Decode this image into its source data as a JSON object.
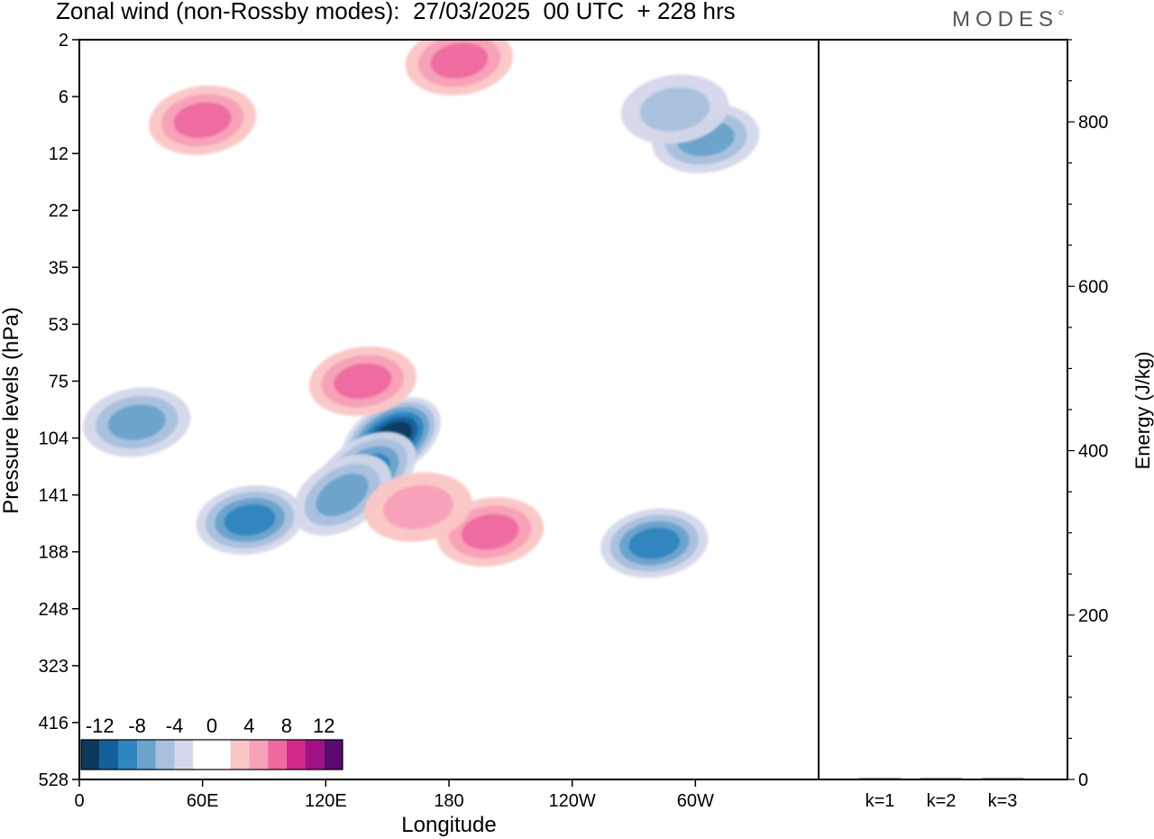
{
  "title": "Zonal wind (non-Rossby modes):  27/03/2025  00 UTC  + 228 hrs",
  "logo": "MODES",
  "logo_mark": "©",
  "chart_data": [
    {
      "type": "heatmap",
      "xlabel": "Longitude",
      "ylabel": "Pressure levels (hPa)",
      "x_ticks": [
        "0",
        "60E",
        "120E",
        "180",
        "120W",
        "60W"
      ],
      "x_range_deg": [
        0,
        360
      ],
      "y_ticks": [
        "2",
        "6",
        "12",
        "22",
        "35",
        "53",
        "75",
        "104",
        "141",
        "188",
        "248",
        "323",
        "416",
        "528"
      ],
      "colorbar": {
        "labels": [
          "-12",
          "-8",
          "-4",
          "0",
          "4",
          "8",
          "12"
        ],
        "colors": [
          "#0c3a5e",
          "#12609a",
          "#2f85bf",
          "#6aa3cc",
          "#a8c0de",
          "#d4d8ea",
          "#ffffff",
          "#ffffff",
          "#fbc6c6",
          "#f7a1b8",
          "#ee6a9e",
          "#d12a8a",
          "#a11284",
          "#5a0a70"
        ]
      },
      "blobs": [
        {
          "lon": 152,
          "plev": 104,
          "value": -12,
          "note": "strongest negative jet core tilted NE over 120E-165E"
        },
        {
          "lon": 140,
          "plev": 125,
          "value": -8
        },
        {
          "lon": 128,
          "plev": 141,
          "value": -6
        },
        {
          "lon": 83,
          "plev": 160,
          "value": -8
        },
        {
          "lon": 28,
          "plev": 95,
          "value": -6
        },
        {
          "lon": 280,
          "plev": 180,
          "value": -8
        },
        {
          "lon": 200,
          "plev": 170,
          "value": 7
        },
        {
          "lon": 165,
          "plev": 150,
          "value": 4
        },
        {
          "lon": 138,
          "plev": 75,
          "value": 6
        },
        {
          "lon": 60,
          "plev": 8,
          "value": 7
        },
        {
          "lon": 185,
          "plev": 3,
          "value": 7
        },
        {
          "lon": 305,
          "plev": 10,
          "value": -6
        },
        {
          "lon": 290,
          "plev": 7,
          "value": -4
        }
      ]
    },
    {
      "type": "bar",
      "categories": [
        "k=1",
        "k=2",
        "k=3"
      ],
      "values": [
        0,
        0,
        0
      ],
      "ylabel": "Energy (J/kg)",
      "ylim": [
        0,
        900
      ],
      "y_ticks": [
        0,
        200,
        400,
        600,
        800
      ]
    }
  ]
}
